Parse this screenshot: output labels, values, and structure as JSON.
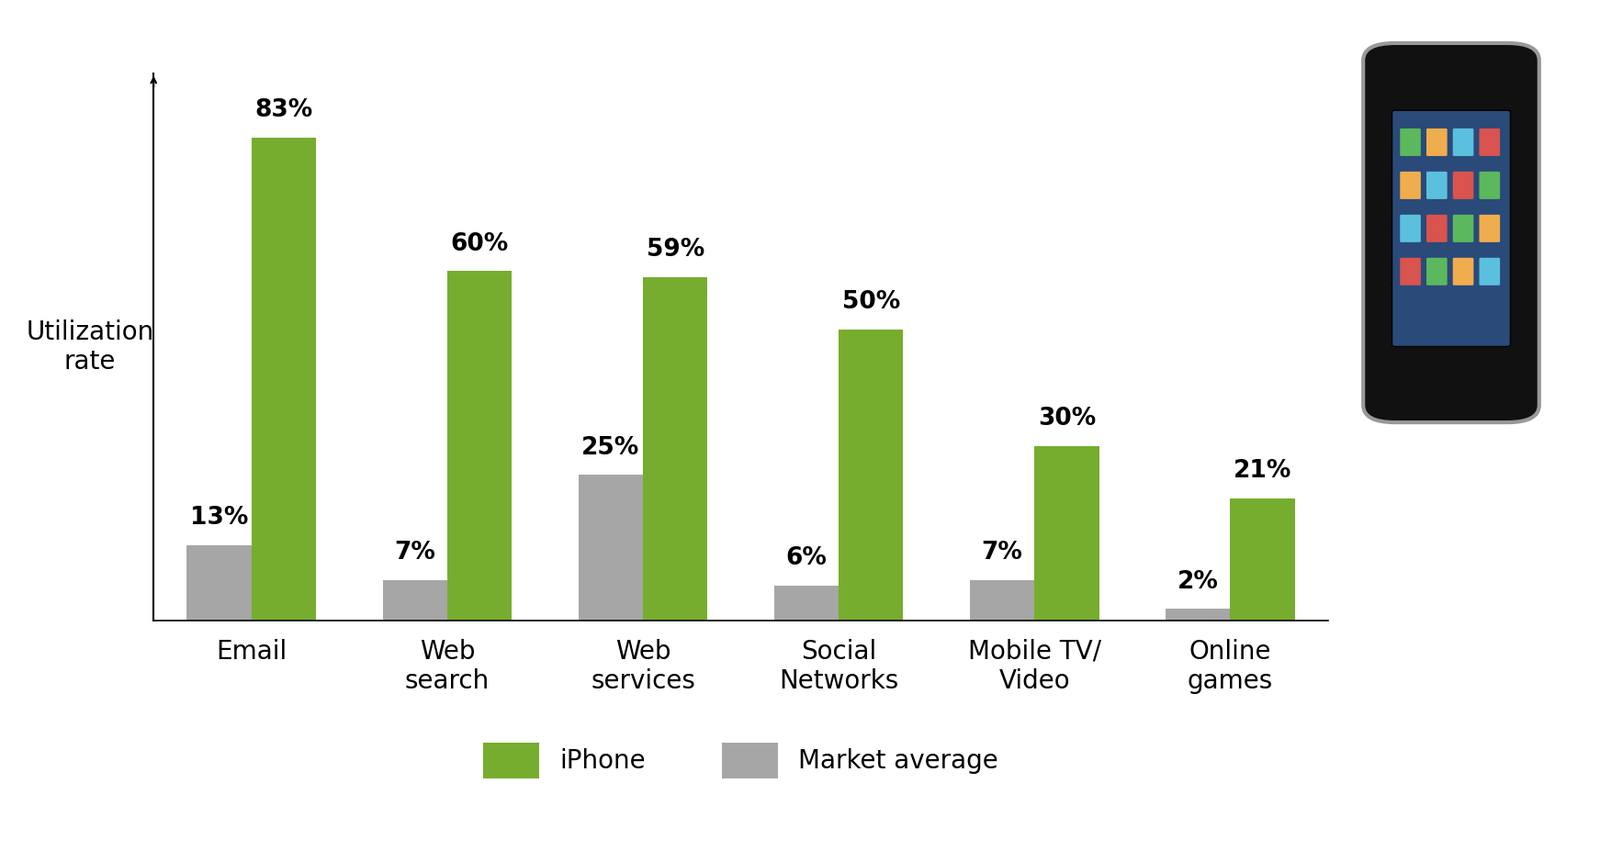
{
  "chart_data": {
    "type": "bar",
    "y_label": "Utilization\nrate",
    "categories": [
      "Email",
      "Web\nsearch",
      "Web\nservices",
      "Social\nNetworks",
      "Mobile TV/\nVideo",
      "Online\ngames"
    ],
    "series": [
      {
        "name": "Market average",
        "color": "#a6a6a6",
        "values": [
          13,
          7,
          25,
          6,
          7,
          2
        ],
        "value_labels": [
          "13%",
          "7%",
          "25%",
          "6%",
          "7%",
          "2%"
        ]
      },
      {
        "name": "iPhone",
        "color": "#76ad2e",
        "values": [
          83,
          60,
          59,
          50,
          30,
          21
        ],
        "value_labels": [
          "83%",
          "60%",
          "59%",
          "50%",
          "30%",
          "21%"
        ]
      }
    ],
    "ylim": [
      0,
      94
    ],
    "yticks": [],
    "tick_labels": "x",
    "grid": false,
    "data_labels": true,
    "legend": "lower center"
  }
}
